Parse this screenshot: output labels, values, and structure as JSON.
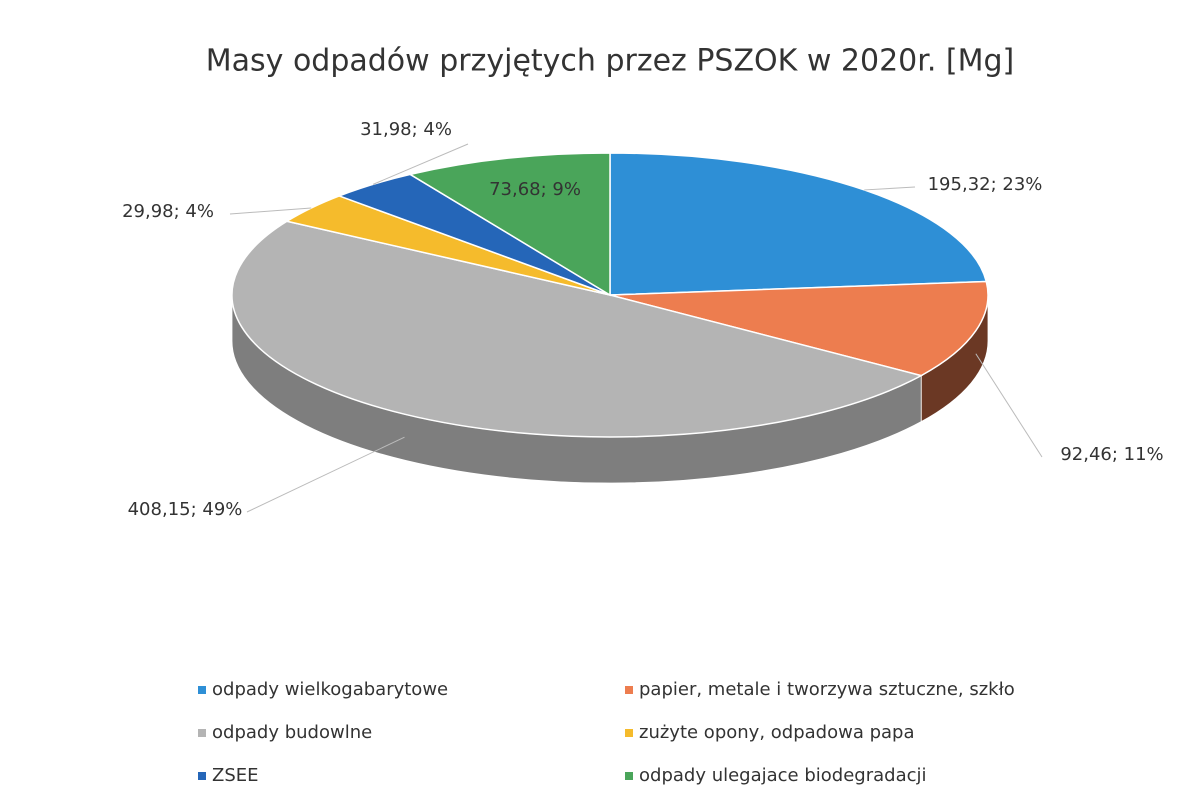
{
  "chart_data": {
    "type": "pie3d",
    "title": "Masy odpadów przyjętych przez PSZOK w 2020r. [Mg]",
    "categories": [
      "odpady wielkogabarytowe",
      "papier, metale i tworzywa sztuczne, szkło",
      "odpady budowlne",
      "zużyte opony, odpadowa papa",
      "ZSEE",
      "odpady ulegajace biodegradacji"
    ],
    "values": [
      195.32,
      92.46,
      408.15,
      29.98,
      31.98,
      73.68
    ],
    "value_labels": [
      "195,32; 23%",
      "92,46; 11%",
      "408,15; 49%",
      "29,98; 4%",
      "31,98; 4%",
      "73,68; 9%"
    ],
    "colors": [
      "#2e8fd6",
      "#ed7d4f",
      "#b4b4b4",
      "#f5bb2c",
      "#2566b8",
      "#4aa55a"
    ],
    "legend": "bottom"
  }
}
